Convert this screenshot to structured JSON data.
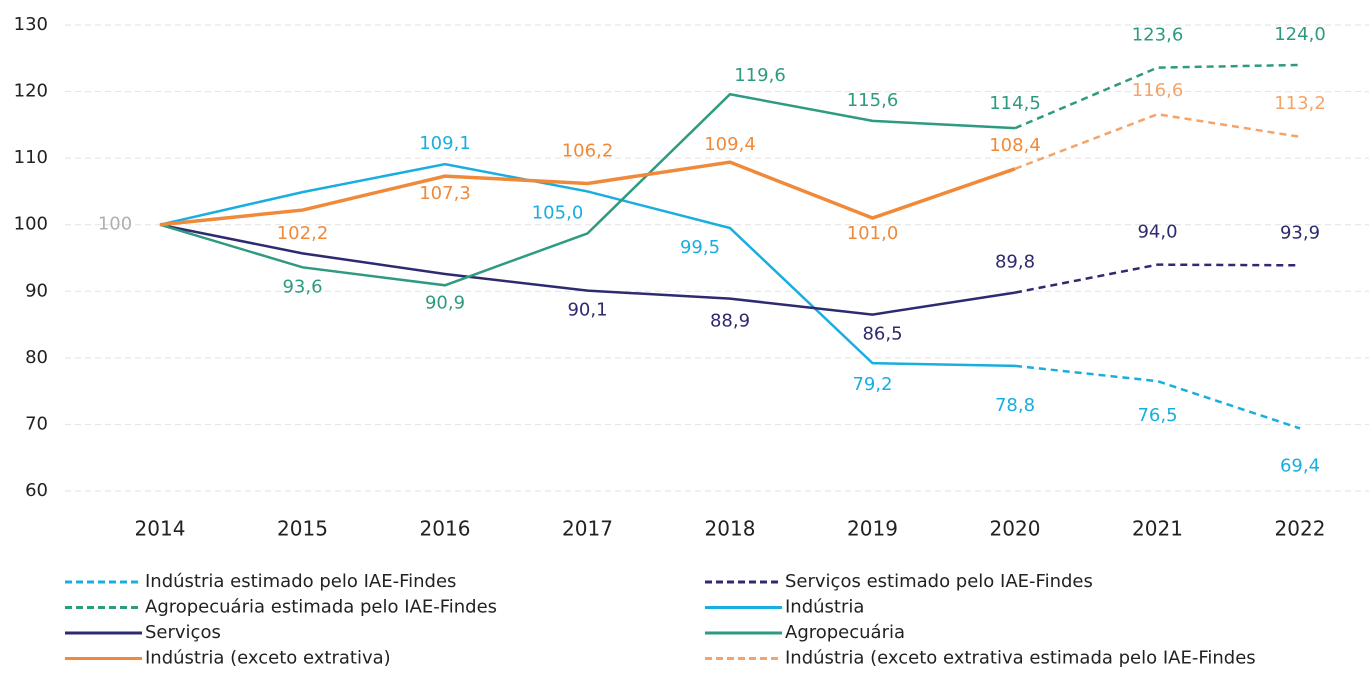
{
  "chart_data": {
    "type": "line",
    "categories": [
      "2014",
      "2015",
      "2016",
      "2017",
      "2018",
      "2019",
      "2020",
      "2021",
      "2022"
    ],
    "ylim": [
      60,
      130
    ],
    "yticks": [
      60,
      70,
      80,
      90,
      100,
      110,
      120,
      130
    ],
    "grid": true,
    "series": [
      {
        "name": "Indústria estimado pelo IAE-Findes",
        "color": "#19aee0",
        "dashed": true,
        "values": [
          null,
          null,
          null,
          null,
          null,
          null,
          78.8,
          76.5,
          69.4
        ],
        "value_labels": [
          null,
          null,
          null,
          null,
          null,
          null,
          null,
          "76,5",
          "69,4"
        ]
      },
      {
        "name": "Serviços estimado pelo IAE-Findes",
        "color": "#2d2a70",
        "dashed": true,
        "values": [
          null,
          null,
          null,
          null,
          null,
          null,
          89.8,
          94.0,
          93.9
        ],
        "value_labels": [
          null,
          null,
          null,
          null,
          null,
          null,
          null,
          "94,0",
          "93,9"
        ]
      },
      {
        "name": "Agropecuária estimada pelo IAE-Findes",
        "color": "#2e9a80",
        "dashed": true,
        "values": [
          null,
          null,
          null,
          null,
          null,
          null,
          114.5,
          123.6,
          124.0
        ],
        "value_labels": [
          null,
          null,
          null,
          null,
          null,
          null,
          null,
          "123,6",
          "124,0"
        ]
      },
      {
        "name": "Indústria",
        "color": "#19aee0",
        "dashed": false,
        "values": [
          100,
          104.9,
          109.1,
          105.0,
          99.5,
          79.2,
          78.8,
          null,
          null
        ],
        "value_labels": [
          "100",
          null,
          "109,1",
          "105,0",
          "99,5",
          "79,2",
          "78,8",
          null,
          null
        ]
      },
      {
        "name": "Serviços",
        "color": "#2d2a70",
        "dashed": false,
        "values": [
          100,
          95.7,
          92.6,
          90.1,
          88.9,
          86.5,
          89.8,
          null,
          null
        ],
        "value_labels": [
          null,
          null,
          null,
          "90,1",
          "88,9",
          "86,5",
          "89,8",
          null,
          null
        ]
      },
      {
        "name": "Agropecuária",
        "color": "#2e9a80",
        "dashed": false,
        "values": [
          100,
          93.6,
          90.9,
          98.7,
          119.6,
          115.6,
          114.5,
          null,
          null
        ],
        "value_labels": [
          null,
          "93,6",
          "90,9",
          null,
          "119,6",
          "115,6",
          "114,5",
          null,
          null
        ]
      },
      {
        "name": "Indústria (exceto extrativa)",
        "color": "#f08a3a",
        "dashed": false,
        "values": [
          100,
          102.2,
          107.3,
          106.2,
          109.4,
          101.0,
          108.4,
          null,
          null
        ],
        "value_labels": [
          null,
          "102,2",
          "107,3",
          "106,2",
          "109,4",
          "101,0",
          "108,4",
          null,
          null
        ]
      },
      {
        "name": "Indústria (exceto extrativa estimada pelo IAE-Findes",
        "color": "#f4a46a",
        "dashed": true,
        "values": [
          null,
          null,
          null,
          null,
          null,
          null,
          108.4,
          116.6,
          113.2
        ],
        "value_labels": [
          null,
          null,
          null,
          null,
          null,
          null,
          null,
          "116,6",
          "113,2"
        ]
      }
    ]
  }
}
